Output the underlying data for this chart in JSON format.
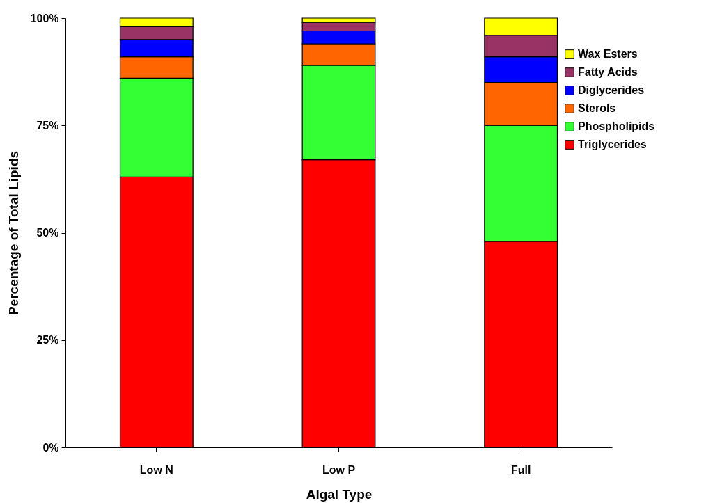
{
  "chart_data": {
    "type": "bar",
    "stacked": true,
    "xlabel": "Algal Type",
    "ylabel": "Percentage of Total Lipids",
    "categories": [
      "Low N",
      "Low P",
      "Full"
    ],
    "series": [
      {
        "name": "Triglycerides",
        "color": "#ff0000",
        "values": [
          63,
          67,
          48
        ]
      },
      {
        "name": "Phospholipids",
        "color": "#33ff33",
        "values": [
          23,
          22,
          27
        ]
      },
      {
        "name": "Sterols",
        "color": "#ff6600",
        "values": [
          5,
          5,
          10
        ]
      },
      {
        "name": "Diglycerides",
        "color": "#0000ff",
        "values": [
          4,
          3,
          6
        ]
      },
      {
        "name": "Fatty Acids",
        "color": "#993366",
        "values": [
          3,
          2,
          5
        ]
      },
      {
        "name": "Wax Esters",
        "color": "#ffff00",
        "values": [
          2,
          1,
          4
        ]
      }
    ],
    "ylim": [
      0,
      100
    ],
    "yticks": [
      {
        "value": 0,
        "label": "0%"
      },
      {
        "value": 25,
        "label": "25%"
      },
      {
        "value": 50,
        "label": "50%"
      },
      {
        "value": 75,
        "label": "75%"
      },
      {
        "value": 100,
        "label": "100%"
      }
    ],
    "grid": false,
    "legend": "top right"
  }
}
